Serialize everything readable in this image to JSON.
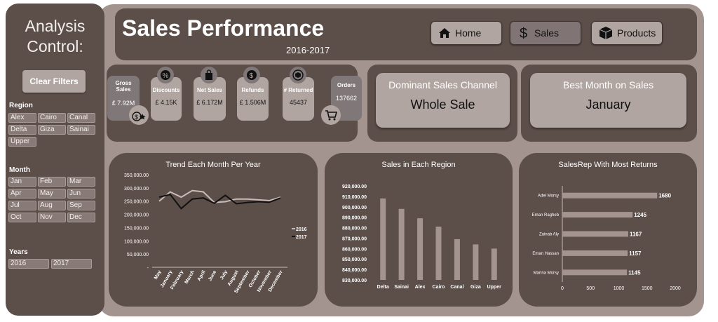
{
  "sidebar": {
    "title_line1": "Analysis",
    "title_line2": "Control:",
    "clear_filters": "Clear Filters",
    "region_label": "Region",
    "regions": [
      "Alex",
      "Cairo",
      "Canal",
      "Delta",
      "Giza",
      "Sainai",
      "Upper"
    ],
    "month_label": "Month",
    "months": [
      "Jan",
      "Feb",
      "Mar",
      "Apr",
      "May",
      "Jun",
      "Jul",
      "Aug",
      "Sep",
      "Oct",
      "Nov",
      "Dec"
    ],
    "years_label": "Years",
    "years": [
      "2016",
      "2017"
    ]
  },
  "header": {
    "title": "Sales Performance",
    "subtitle": "2016-2017",
    "nav": [
      {
        "label": "Home",
        "icon": "home-icon"
      },
      {
        "label": "Sales",
        "icon": "dollar-icon",
        "active": true
      },
      {
        "label": "Products",
        "icon": "box-icon"
      }
    ]
  },
  "kpis": {
    "gross_sales": {
      "label": "Gross Sales",
      "value": "£ 7.92M"
    },
    "discounts": {
      "label": "Discounts",
      "value": "£ 4.15K"
    },
    "net_sales": {
      "label": "Net Sales",
      "value": "£ 6.172M"
    },
    "refunds": {
      "label": "Refunds",
      "value": "£ 1.506M"
    },
    "returned": {
      "label": "# Returned",
      "value": "45437"
    },
    "orders": {
      "label": "Orders",
      "value": "137662"
    }
  },
  "cards": {
    "channel": {
      "title": "Dominant Sales Channel",
      "value": "Whole Sale"
    },
    "best_month": {
      "title": "Best Month on Sales",
      "value": "January"
    }
  },
  "chart_data": [
    {
      "type": "line",
      "title": "Trend Each Month Per Year",
      "categories": [
        "May",
        "January",
        "February",
        "March",
        "April",
        "June",
        "July",
        "August",
        "September",
        "October",
        "November",
        "December"
      ],
      "yticks": [
        "350,000.00",
        "300,000.00",
        "250,000.00",
        "200,000.00",
        "150,000.00",
        "100,000.00",
        "50,000.00",
        "-"
      ],
      "ylim": [
        0,
        350000
      ],
      "series": [
        {
          "name": "2016",
          "color": "#c8bcb8",
          "values": [
            250000,
            285000,
            265000,
            290000,
            285000,
            245000,
            248000,
            258000,
            258000,
            255000,
            252000,
            265000
          ]
        },
        {
          "name": "2017",
          "color": "#111111",
          "values": [
            265000,
            275000,
            222000,
            258000,
            262000,
            242000,
            272000,
            240000,
            245000,
            248000,
            246000,
            262000
          ]
        }
      ],
      "legend": "right"
    },
    {
      "type": "bar",
      "title": "Sales in Each Region",
      "categories": [
        "Delta",
        "Sainai",
        "Alex",
        "Cairo",
        "Canal",
        "Giza",
        "Upper"
      ],
      "values": [
        908000,
        898000,
        889000,
        881000,
        869000,
        864000,
        860000
      ],
      "yticks": [
        "920,000.00",
        "910,000.00",
        "900,000.00",
        "890,000.00",
        "880,000.00",
        "870,000.00",
        "860,000.00",
        "850,000.00",
        "840,000.00",
        "830,000.00"
      ],
      "ylim": [
        830000,
        920000
      ]
    },
    {
      "type": "bar",
      "orientation": "horizontal",
      "title": "SalesRep With Most Returns",
      "categories": [
        "Adel Morsy",
        "Eman Ragheb",
        "Zainab Aly",
        "Eman Hassan",
        "Marina Morsy"
      ],
      "values": [
        1680,
        1245,
        1167,
        1157,
        1145
      ],
      "xticks": [
        "0",
        "500",
        "1000",
        "1500",
        "2000"
      ],
      "xlim": [
        0,
        2000
      ]
    }
  ]
}
